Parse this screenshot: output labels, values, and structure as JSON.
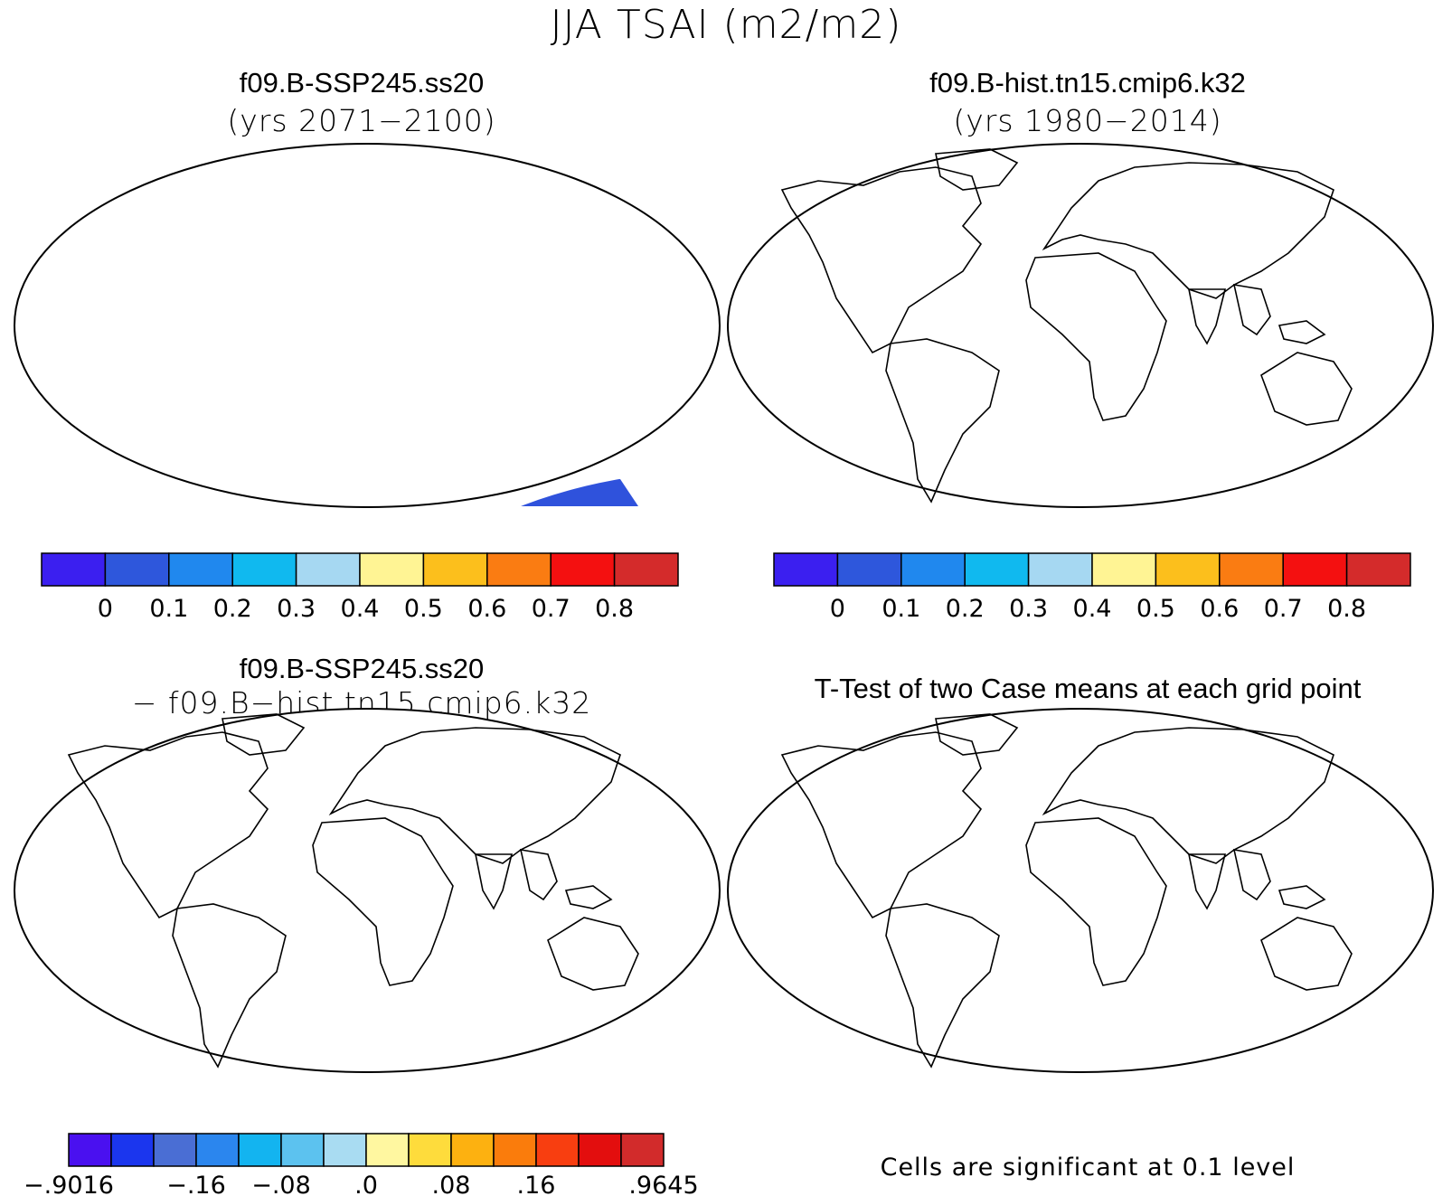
{
  "title": "JJA TSAI (m2/m2)",
  "panels": [
    {
      "id": "future",
      "title": "f09.B-SSP245.ss20",
      "subtitle": "(yrs 2071−2100)"
    },
    {
      "id": "hist",
      "title": "f09.B-hist.tn15.cmip6.k32",
      "subtitle": "(yrs 1980−2014)"
    },
    {
      "id": "diff",
      "title": "f09.B-SSP245.ss20",
      "subtitle": "− f09.B−hist.tn15.cmip6.k32"
    },
    {
      "id": "ttest",
      "title": "T-Test of two Case means at each grid point",
      "note": "Cells are significant at 0.1 level"
    }
  ],
  "colorbars": {
    "abs": {
      "colors": [
        "#3b1ff0",
        "#2e57dc",
        "#2088ee",
        "#10b9ef",
        "#a6d8f2",
        "#fff494",
        "#fcbf1c",
        "#fa7c12",
        "#f41010",
        "#d42b2b"
      ],
      "labels": [
        "0",
        "0.1",
        "0.2",
        "0.3",
        "0.4",
        "0.5",
        "0.6",
        "0.7",
        "0.8"
      ]
    },
    "diff": {
      "colors": [
        "#4a10f0",
        "#1b36ee",
        "#4a6ed4",
        "#2b86ee",
        "#13b4f0",
        "#5cc2ef",
        "#a9dcf2",
        "#fff7a0",
        "#fedc3c",
        "#fdb110",
        "#fa7c0c",
        "#f83e10",
        "#e30e0e",
        "#d22b2b"
      ],
      "labels": [
        "−.9016",
        "−.16",
        "−.08",
        ".0",
        ".08",
        ".16",
        ".9645"
      ]
    }
  }
}
